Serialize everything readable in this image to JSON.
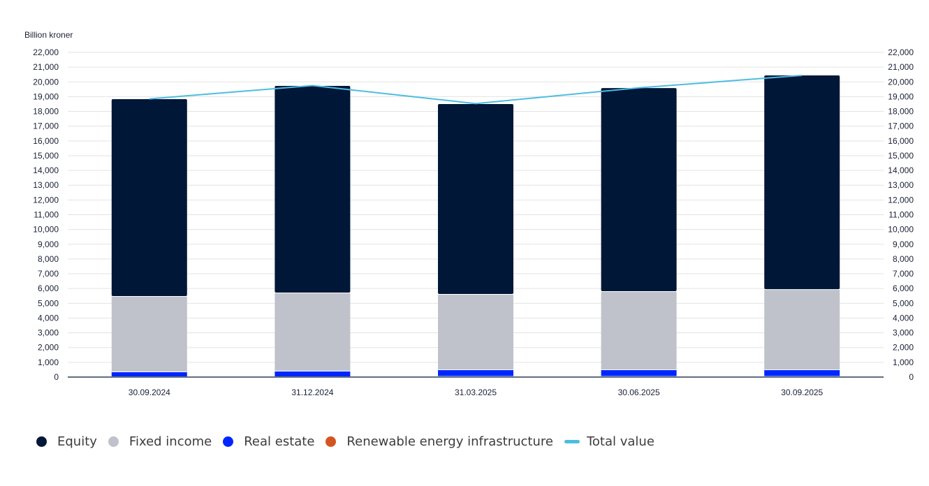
{
  "chart_data": {
    "type": "bar",
    "stacked": true,
    "ylabel": "Billion kroner",
    "ylim": [
      0,
      22000
    ],
    "ytick_step": 1000,
    "yticks": [
      "0",
      "1,000",
      "2,000",
      "3,000",
      "4,000",
      "5,000",
      "6,000",
      "7,000",
      "8,000",
      "9,000",
      "10,000",
      "11,000",
      "12,000",
      "13,000",
      "14,000",
      "15,000",
      "16,000",
      "17,000",
      "18,000",
      "19,000",
      "20,000",
      "21,000",
      "22,000"
    ],
    "grid": true,
    "secondary_axis": true,
    "categories": [
      "30.09.2024",
      "31.12.2024",
      "31.03.2025",
      "30.06.2025",
      "30.09.2025"
    ],
    "series": [
      {
        "name": "Renewable energy infrastructure",
        "color": "#d4541f",
        "values": [
          0,
          0,
          20,
          20,
          20
        ]
      },
      {
        "name": "Real estate",
        "color": "#0026ff",
        "values": [
          330,
          380,
          450,
          450,
          450
        ]
      },
      {
        "name": "Fixed income",
        "color": "#bfc2ca",
        "values": [
          5110,
          5300,
          5110,
          5300,
          5440
        ]
      },
      {
        "name": "Equity",
        "color": "#001738",
        "values": [
          13390,
          14050,
          12920,
          13810,
          14530
        ]
      }
    ],
    "line": {
      "name": "Total value",
      "color": "#4cbde0",
      "values": [
        18850,
        19750,
        18530,
        19600,
        20440
      ]
    },
    "legend": [
      {
        "name": "Equity",
        "color": "#001738",
        "type": "dot"
      },
      {
        "name": "Fixed income",
        "color": "#bfc2ca",
        "type": "dot"
      },
      {
        "name": "Real estate",
        "color": "#0026ff",
        "type": "dot"
      },
      {
        "name": "Renewable energy infrastructure",
        "color": "#d4541f",
        "type": "dot"
      },
      {
        "name": "Total value",
        "color": "#4cbde0",
        "type": "line"
      }
    ],
    "legend_position": "bottom-left"
  }
}
